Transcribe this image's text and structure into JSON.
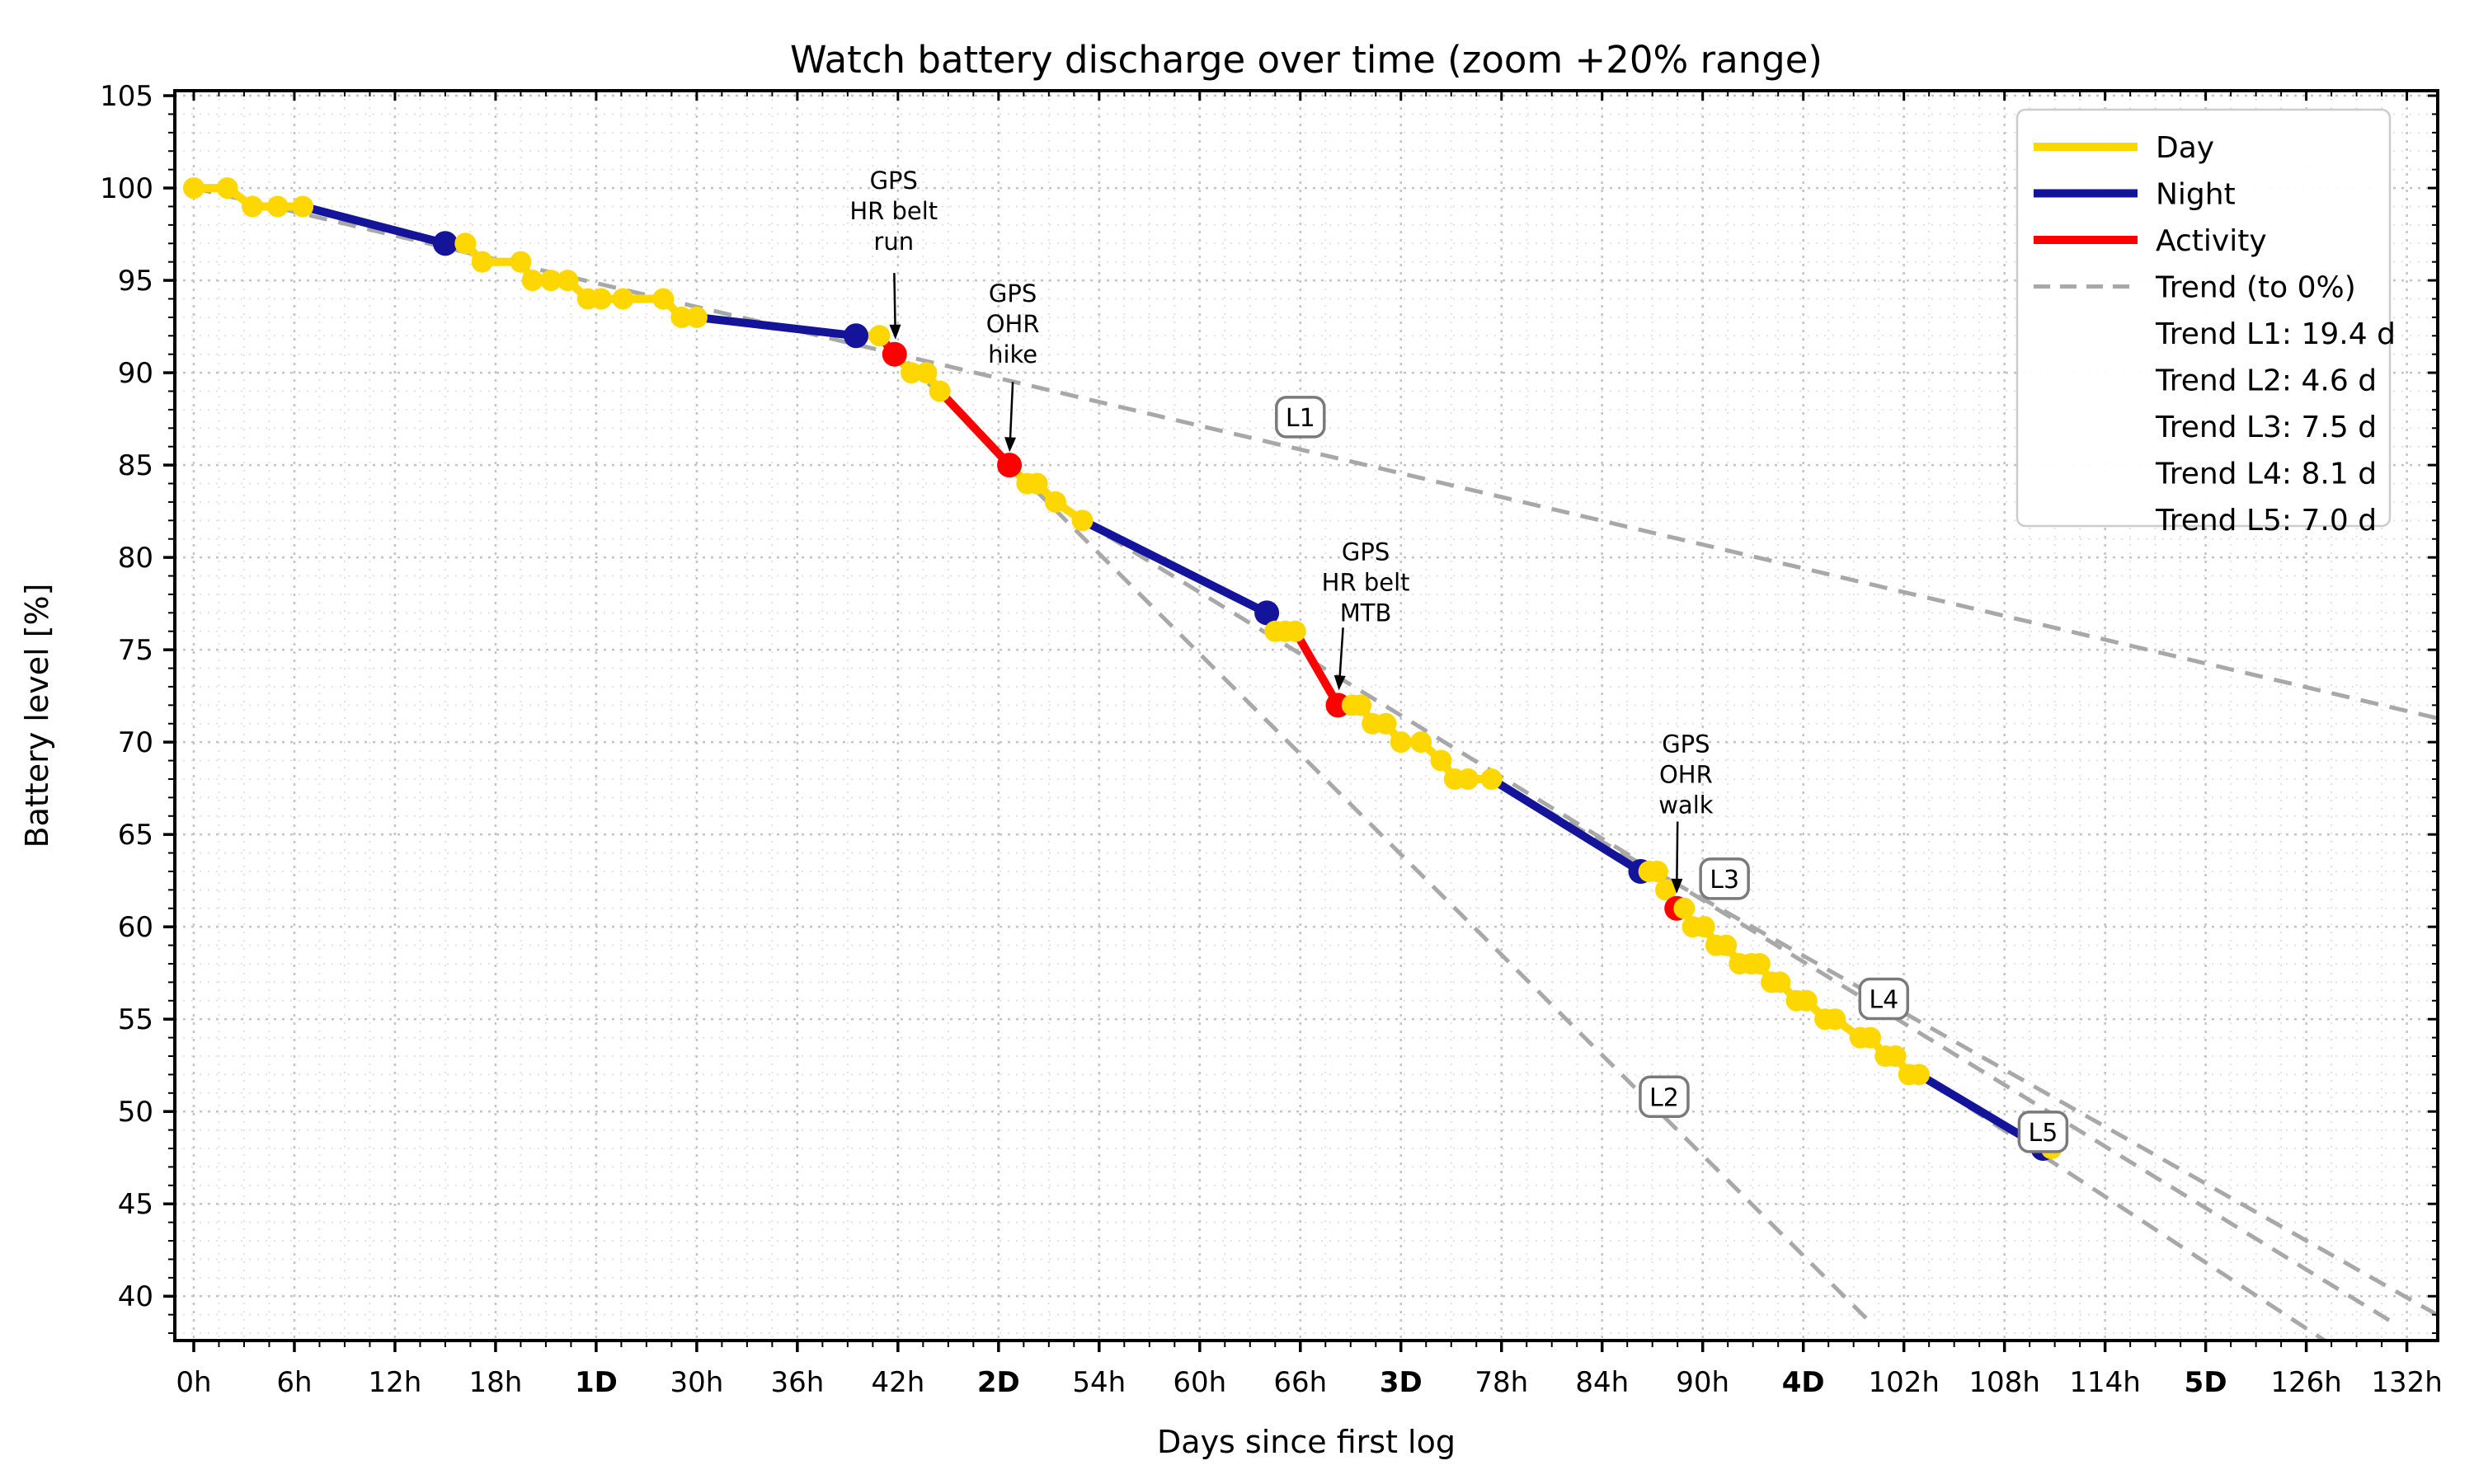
{
  "title": "Watch battery discharge over time (zoom +20% range)",
  "colors": {
    "day": "#ffd700",
    "night": "#14149b",
    "activity": "#ff0000",
    "trend": "#a8a8a8",
    "grid_major": "#c4c4c4",
    "grid_minor": "#e2e2e2",
    "spine": "#000000",
    "label_box_border": "#7a7a7a",
    "legend_border": "#cccccc"
  },
  "legend": {
    "items": [
      {
        "swatch": "day",
        "label": "Day"
      },
      {
        "swatch": "night",
        "label": "Night"
      },
      {
        "swatch": "activity",
        "label": "Activity"
      },
      {
        "swatch": "trend",
        "label": "Trend (to 0%)"
      },
      {
        "swatch": null,
        "label": "Trend L1: 19.4 d"
      },
      {
        "swatch": null,
        "label": "Trend L2: 4.6 d"
      },
      {
        "swatch": null,
        "label": "Trend L3: 7.5 d"
      },
      {
        "swatch": null,
        "label": "Trend L4: 8.1 d"
      },
      {
        "swatch": null,
        "label": "Trend L5: 7.0 d"
      }
    ]
  },
  "chart_data": {
    "type": "line",
    "title": "Watch battery discharge over time (zoom +20% range)",
    "xlabel": "Days since first log",
    "ylabel": "Battery level [%]",
    "xlim": [
      -1.13,
      133.84
    ],
    "ylim": [
      37.6,
      105.27
    ],
    "x_major_step_hours": 6,
    "x_minor_step_hours": 1.5,
    "y_major_step": 5,
    "y_minor_step": 1,
    "x_ticks": [
      {
        "t": 0,
        "label": "0h"
      },
      {
        "t": 6,
        "label": "6h"
      },
      {
        "t": 12,
        "label": "12h"
      },
      {
        "t": 18,
        "label": "18h"
      },
      {
        "t": 24,
        "label": "1D",
        "bold": true
      },
      {
        "t": 30,
        "label": "30h"
      },
      {
        "t": 36,
        "label": "36h"
      },
      {
        "t": 42,
        "label": "42h"
      },
      {
        "t": 48,
        "label": "2D",
        "bold": true
      },
      {
        "t": 54,
        "label": "54h"
      },
      {
        "t": 60,
        "label": "60h"
      },
      {
        "t": 66,
        "label": "66h"
      },
      {
        "t": 72,
        "label": "3D",
        "bold": true
      },
      {
        "t": 78,
        "label": "78h"
      },
      {
        "t": 84,
        "label": "84h"
      },
      {
        "t": 90,
        "label": "90h"
      },
      {
        "t": 96,
        "label": "4D",
        "bold": true
      },
      {
        "t": 102,
        "label": "102h"
      },
      {
        "t": 108,
        "label": "108h"
      },
      {
        "t": 114,
        "label": "114h"
      },
      {
        "t": 120,
        "label": "5D",
        "bold": true
      },
      {
        "t": 126,
        "label": "126h"
      },
      {
        "t": 132,
        "label": "132h"
      }
    ],
    "y_ticks": [
      40,
      45,
      50,
      55,
      60,
      65,
      70,
      75,
      80,
      85,
      90,
      95,
      100,
      105
    ],
    "segments": [
      {
        "kind": "day",
        "points": [
          [
            0,
            100
          ],
          [
            2,
            100
          ],
          [
            3.5,
            99
          ],
          [
            5,
            99
          ],
          [
            6.5,
            99
          ]
        ]
      },
      {
        "kind": "night",
        "points": [
          [
            6.5,
            99
          ],
          [
            15,
            97
          ]
        ]
      },
      {
        "kind": "day",
        "points": [
          [
            15,
            97
          ],
          [
            16.2,
            97
          ],
          [
            17.2,
            96
          ],
          [
            19.5,
            96
          ],
          [
            20.2,
            95
          ],
          [
            21.3,
            95
          ],
          [
            22.3,
            95
          ],
          [
            23.5,
            94
          ],
          [
            24.3,
            94
          ],
          [
            25.6,
            94
          ],
          [
            28,
            94
          ],
          [
            29.1,
            93
          ],
          [
            30,
            93
          ]
        ]
      },
      {
        "kind": "night",
        "points": [
          [
            30,
            93
          ],
          [
            39.5,
            92
          ]
        ]
      },
      {
        "kind": "day",
        "points": [
          [
            39.5,
            92
          ],
          [
            40.9,
            92
          ]
        ]
      },
      {
        "kind": "activity",
        "points": [
          [
            40.9,
            92
          ],
          [
            41.8,
            91
          ]
        ]
      },
      {
        "kind": "day",
        "points": [
          [
            41.8,
            91
          ],
          [
            42.8,
            90
          ],
          [
            43.7,
            90
          ],
          [
            44.5,
            89
          ]
        ]
      },
      {
        "kind": "activity",
        "points": [
          [
            44.5,
            89
          ],
          [
            48.65,
            85
          ]
        ]
      },
      {
        "kind": "day",
        "points": [
          [
            48.65,
            85
          ],
          [
            49.7,
            84
          ],
          [
            50.3,
            84
          ],
          [
            51.4,
            83
          ],
          [
            53,
            82
          ]
        ]
      },
      {
        "kind": "night",
        "points": [
          [
            53,
            82
          ],
          [
            64,
            77
          ]
        ]
      },
      {
        "kind": "day",
        "points": [
          [
            64,
            77
          ],
          [
            64.5,
            76
          ],
          [
            65.1,
            76
          ],
          [
            65.7,
            76
          ]
        ]
      },
      {
        "kind": "activity",
        "points": [
          [
            65.7,
            76
          ],
          [
            68.25,
            72
          ]
        ]
      },
      {
        "kind": "day",
        "points": [
          [
            68.25,
            72
          ],
          [
            69.1,
            72
          ],
          [
            69.6,
            72
          ],
          [
            70.3,
            71
          ],
          [
            71.1,
            71
          ],
          [
            72,
            70
          ],
          [
            73.2,
            70
          ],
          [
            74.4,
            69
          ],
          [
            75.2,
            68
          ],
          [
            76,
            68
          ],
          [
            77.4,
            68
          ]
        ]
      },
      {
        "kind": "night",
        "points": [
          [
            77.4,
            68
          ],
          [
            86.3,
            63
          ]
        ]
      },
      {
        "kind": "day",
        "points": [
          [
            86.3,
            63
          ],
          [
            86.8,
            63
          ],
          [
            87.3,
            63
          ],
          [
            87.8,
            62
          ]
        ]
      },
      {
        "kind": "activity",
        "points": [
          [
            87.8,
            62
          ],
          [
            88.45,
            61
          ]
        ]
      },
      {
        "kind": "day",
        "points": [
          [
            88.45,
            61
          ],
          [
            88.9,
            61
          ],
          [
            89.4,
            60
          ],
          [
            90.1,
            60
          ],
          [
            90.8,
            59
          ],
          [
            91.4,
            59
          ],
          [
            92.2,
            58
          ],
          [
            92.9,
            58
          ],
          [
            93.4,
            58
          ],
          [
            94.1,
            57
          ],
          [
            94.6,
            57
          ],
          [
            95.6,
            56
          ],
          [
            96.2,
            56
          ],
          [
            97.3,
            55
          ],
          [
            97.9,
            55
          ],
          [
            99.4,
            54
          ],
          [
            100,
            54
          ],
          [
            100.9,
            53
          ],
          [
            101.5,
            53
          ],
          [
            102.3,
            52
          ],
          [
            102.9,
            52
          ]
        ]
      },
      {
        "kind": "night",
        "points": [
          [
            102.9,
            52
          ],
          [
            110.3,
            48
          ]
        ]
      },
      {
        "kind": "day",
        "points": [
          [
            110.3,
            48
          ],
          [
            110.8,
            48
          ]
        ]
      }
    ],
    "trends": [
      {
        "name": "L1",
        "days_to_zero": 19.4,
        "from": [
          0,
          100
        ],
        "to": [
          133.8,
          71.3
        ],
        "label_at": [
          66,
          87.6
        ]
      },
      {
        "name": "L2",
        "days_to_zero": 4.6,
        "from": [
          41.3,
          91.7
        ],
        "to": [
          100.2,
          38.4
        ],
        "label_at": [
          87.7,
          50.8
        ]
      },
      {
        "name": "L3",
        "days_to_zero": 7.5,
        "from": [
          53,
          82
        ],
        "to": [
          131.3,
          38.5
        ],
        "label_at": [
          91.3,
          62.6
        ]
      },
      {
        "name": "L4",
        "days_to_zero": 8.1,
        "from": [
          77.4,
          68
        ],
        "to": [
          133.8,
          39.0
        ],
        "label_at": [
          100.8,
          56.1
        ]
      },
      {
        "name": "L5",
        "days_to_zero": 7.0,
        "from": [
          102.9,
          52
        ],
        "to": [
          127.1,
          37.6
        ],
        "label_at": [
          110.3,
          48.9
        ]
      }
    ],
    "annotations": [
      {
        "lines": [
          "GPS",
          "HR belt",
          "run"
        ],
        "text_at": [
          41.75,
          100.4
        ],
        "arrow_from": [
          41.78,
          95.4
        ],
        "arrow_to": [
          41.85,
          91.8
        ]
      },
      {
        "lines": [
          "GPS",
          "OHR",
          "hike"
        ],
        "text_at": [
          48.85,
          94.3
        ],
        "arrow_from": [
          48.85,
          89.5
        ],
        "arrow_to": [
          48.66,
          85.7
        ]
      },
      {
        "lines": [
          "GPS",
          "HR belt",
          "MTB"
        ],
        "text_at": [
          69.9,
          80.3
        ],
        "arrow_from": [
          68.55,
          76.2
        ],
        "arrow_to": [
          68.3,
          72.8
        ]
      },
      {
        "lines": [
          "GPS",
          "OHR",
          "walk"
        ],
        "text_at": [
          89.0,
          69.9
        ],
        "arrow_from": [
          88.5,
          65.7
        ],
        "arrow_to": [
          88.45,
          61.8
        ]
      }
    ]
  }
}
